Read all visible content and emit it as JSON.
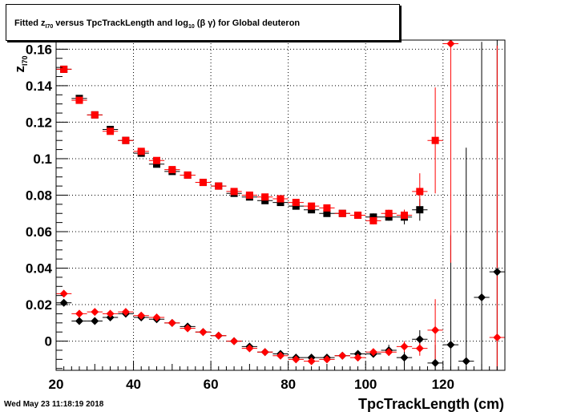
{
  "title": {
    "pre": "Fitted  z",
    "sub1": "I70",
    "mid": "  versus TpcTrackLength and log",
    "sub2": "10",
    "post": " (β γ) for Global deuteron"
  },
  "timestamp": "Wed May 23 11:18:19 2018",
  "chart_data": {
    "type": "scatter",
    "xlabel": "TpcTrackLength (cm)",
    "ylabel": "z",
    "ylabel_sub": "I70",
    "xlim": [
      20,
      136
    ],
    "ylim": [
      -0.016,
      0.165
    ],
    "x_ticks": [
      20,
      40,
      60,
      80,
      100,
      120
    ],
    "y_ticks": [
      0,
      0.02,
      0.04,
      0.06,
      0.08,
      0.1,
      0.12,
      0.14,
      0.16
    ],
    "y_tick_labels": [
      "0",
      "0.02",
      "0.04",
      "0.06",
      "0.08",
      "0.1",
      "0.12",
      "0.14",
      "0.16"
    ],
    "grid": true,
    "series": [
      {
        "marker": "square",
        "color": "#000000",
        "x": [
          22,
          26,
          30,
          34,
          38,
          42,
          46,
          50,
          54,
          58,
          62,
          66,
          70,
          74,
          78,
          82,
          86,
          90,
          94,
          98,
          102,
          106,
          110,
          114
        ],
        "y": [
          0.149,
          0.133,
          0.124,
          0.116,
          0.11,
          0.103,
          0.097,
          0.093,
          0.091,
          0.087,
          0.085,
          0.081,
          0.079,
          0.077,
          0.076,
          0.074,
          0.072,
          0.07,
          0.07,
          0.069,
          0.068,
          0.068,
          0.068,
          0.072
        ],
        "err": [
          0,
          0,
          0,
          0,
          0,
          0,
          0,
          0,
          0,
          0,
          0,
          0,
          0,
          0,
          0,
          0,
          0,
          0,
          0,
          0,
          0.002,
          0.002,
          0.004,
          0.006
        ]
      },
      {
        "marker": "square",
        "color": "#ff0000",
        "x": [
          22,
          26,
          30,
          34,
          38,
          42,
          46,
          50,
          54,
          58,
          62,
          66,
          70,
          74,
          78,
          82,
          86,
          90,
          94,
          98,
          102,
          106,
          110,
          114,
          118
        ],
        "y": [
          0.149,
          0.132,
          0.124,
          0.115,
          0.11,
          0.104,
          0.099,
          0.094,
          0.091,
          0.087,
          0.085,
          0.082,
          0.08,
          0.079,
          0.078,
          0.076,
          0.074,
          0.073,
          0.07,
          0.069,
          0.066,
          0.07,
          0.069,
          0.082,
          0.11
        ],
        "err": [
          0,
          0,
          0,
          0,
          0,
          0,
          0,
          0,
          0,
          0,
          0,
          0,
          0,
          0,
          0,
          0,
          0,
          0,
          0,
          0,
          0.002,
          0.002,
          0.003,
          0.01,
          0.029
        ]
      },
      {
        "marker": "diamond",
        "color": "#000000",
        "x": [
          22,
          26,
          30,
          34,
          38,
          42,
          46,
          50,
          54,
          58,
          62,
          66,
          70,
          74,
          78,
          82,
          86,
          90,
          94,
          98,
          102,
          106,
          110,
          114,
          118,
          122,
          126,
          130,
          134
        ],
        "y": [
          0.021,
          0.011,
          0.011,
          0.013,
          0.015,
          0.013,
          0.012,
          0.01,
          0.008,
          0.005,
          0.003,
          0.0,
          -0.003,
          -0.006,
          -0.007,
          -0.009,
          -0.009,
          -0.009,
          -0.008,
          -0.007,
          -0.007,
          -0.005,
          -0.009,
          0.001,
          -0.012,
          -0.002,
          -0.011,
          0.024,
          0.038
        ],
        "err": [
          0,
          0,
          0,
          0,
          0,
          0,
          0,
          0,
          0,
          0,
          0,
          0,
          0,
          0,
          0,
          0,
          0,
          0,
          0,
          0,
          0.002,
          0.003,
          0.004,
          0.005,
          0.01,
          0.06,
          0.117,
          0.14,
          0.14
        ]
      },
      {
        "marker": "diamond",
        "color": "#ff0000",
        "x": [
          22,
          26,
          30,
          34,
          38,
          42,
          46,
          50,
          54,
          58,
          62,
          66,
          70,
          74,
          78,
          82,
          86,
          90,
          94,
          98,
          102,
          106,
          110,
          114,
          118,
          122,
          134
        ],
        "y": [
          0.026,
          0.015,
          0.016,
          0.015,
          0.016,
          0.014,
          0.013,
          0.01,
          0.007,
          0.005,
          0.003,
          0.0,
          -0.004,
          -0.006,
          -0.008,
          -0.01,
          -0.011,
          -0.01,
          -0.008,
          -0.009,
          -0.006,
          -0.006,
          -0.003,
          -0.004,
          0.006,
          0.163,
          0.002
        ],
        "err": [
          0,
          0,
          0,
          0,
          0,
          0,
          0,
          0,
          0,
          0,
          0,
          0,
          0,
          0,
          0,
          0,
          0,
          0,
          0,
          0,
          0.002,
          0.002,
          0.003,
          0.004,
          0.017,
          0.12,
          0.16
        ]
      }
    ]
  }
}
